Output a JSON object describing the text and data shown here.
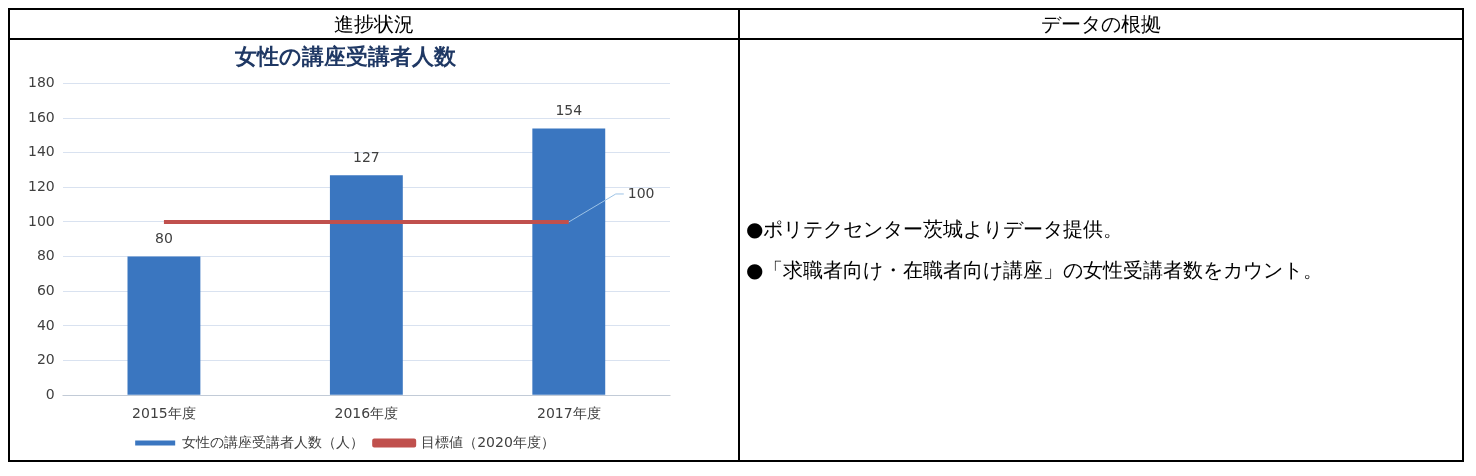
{
  "chart_data": {
    "type": "bar",
    "title": "女性の講座受講者人数",
    "categories": [
      "2015年度",
      "2016年度",
      "2017年度"
    ],
    "series": [
      {
        "name": "女性の講座受講者人数（人）",
        "color": "#3a76c0",
        "values": [
          80,
          127,
          154
        ],
        "value_labels": [
          "80",
          "127",
          "154"
        ]
      },
      {
        "name": "目標値（2020年度）",
        "type": "line",
        "color": "#c0504d",
        "values": [
          100,
          100,
          100
        ],
        "value_labels": [
          null,
          null,
          "100"
        ]
      }
    ],
    "ylim": [
      0,
      180
    ],
    "yticks": [
      0,
      20,
      40,
      60,
      80,
      100,
      120,
      140,
      160,
      180
    ],
    "grid": "y",
    "legend": "bottom",
    "marker": "none",
    "annotations": [
      "進捗状況",
      "データの根拠",
      "●ポリテクセンター茨城よりデータ提供。",
      "●「求職者向け・在職者向け講座」の女性受講者数をカウント。"
    ]
  }
}
